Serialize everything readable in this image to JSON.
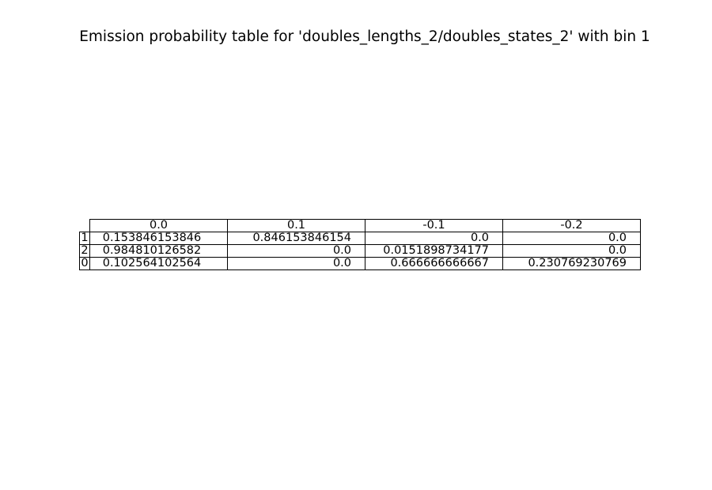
{
  "chart_data": {
    "type": "table",
    "title": "Emission probability table for 'doubles_lengths_2/doubles_states_2' with bin 1",
    "columns": [
      "0.0",
      "0.1",
      "-0.1",
      "-0.2"
    ],
    "rows": [
      {
        "label": "1",
        "values": [
          "0.153846153846",
          "0.846153846154",
          "0.0",
          "0.0"
        ]
      },
      {
        "label": "2",
        "values": [
          "0.984810126582",
          "0.0",
          "0.0151898734177",
          "0.0"
        ]
      },
      {
        "label": "0",
        "values": [
          "0.102564102564",
          "0.0",
          "0.666666666667",
          "0.230769230769"
        ]
      }
    ]
  }
}
